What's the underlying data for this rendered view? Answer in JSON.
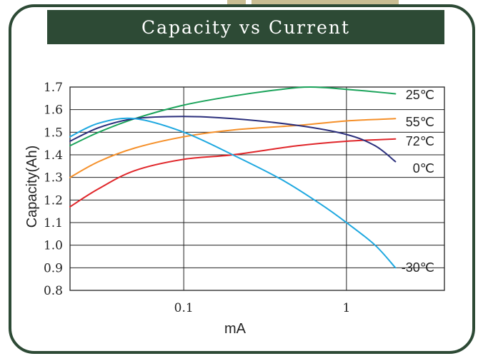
{
  "header": {
    "title": "Capacity vs Current"
  },
  "chart_data": {
    "type": "line",
    "title": "Capacity vs Current",
    "xlabel": "mA",
    "ylabel": "Capacity(Ah)",
    "x_scale": "log",
    "xlim": [
      0.02,
      4
    ],
    "ylim": [
      0.8,
      1.7
    ],
    "xticks": [
      "0.1",
      "1"
    ],
    "yticks": [
      "1.7",
      "1.6",
      "1.5",
      "1.4",
      "1.3",
      "1.2",
      "1.1",
      "1.0",
      "0.9",
      "0.8"
    ],
    "grid": true,
    "series": [
      {
        "name": "25℃",
        "color": "#1aa35a",
        "points": [
          [
            0.02,
            1.44
          ],
          [
            0.03,
            1.5
          ],
          [
            0.05,
            1.56
          ],
          [
            0.1,
            1.62
          ],
          [
            0.2,
            1.66
          ],
          [
            0.4,
            1.69
          ],
          [
            0.6,
            1.7
          ],
          [
            1,
            1.69
          ],
          [
            2,
            1.67
          ]
        ]
      },
      {
        "name": "55℃",
        "color": "#f5902a",
        "points": [
          [
            0.02,
            1.3
          ],
          [
            0.03,
            1.37
          ],
          [
            0.05,
            1.43
          ],
          [
            0.1,
            1.48
          ],
          [
            0.2,
            1.51
          ],
          [
            0.5,
            1.53
          ],
          [
            1,
            1.55
          ],
          [
            2,
            1.56
          ]
        ]
      },
      {
        "name": "72℃",
        "color": "#e0262a",
        "points": [
          [
            0.02,
            1.17
          ],
          [
            0.03,
            1.25
          ],
          [
            0.05,
            1.33
          ],
          [
            0.1,
            1.38
          ],
          [
            0.2,
            1.4
          ],
          [
            0.5,
            1.44
          ],
          [
            1,
            1.46
          ],
          [
            2,
            1.47
          ]
        ]
      },
      {
        "name": "0℃",
        "color": "#2b2f7c",
        "points": [
          [
            0.02,
            1.46
          ],
          [
            0.03,
            1.52
          ],
          [
            0.05,
            1.56
          ],
          [
            0.1,
            1.57
          ],
          [
            0.2,
            1.56
          ],
          [
            0.5,
            1.53
          ],
          [
            1,
            1.49
          ],
          [
            1.5,
            1.44
          ],
          [
            2,
            1.37
          ]
        ]
      },
      {
        "name": "-30℃",
        "color": "#1ea8e0",
        "points": [
          [
            0.02,
            1.48
          ],
          [
            0.03,
            1.54
          ],
          [
            0.05,
            1.56
          ],
          [
            0.1,
            1.5
          ],
          [
            0.2,
            1.4
          ],
          [
            0.4,
            1.29
          ],
          [
            0.7,
            1.18
          ],
          [
            1,
            1.1
          ],
          [
            1.5,
            1.0
          ],
          [
            2,
            0.9
          ]
        ]
      }
    ]
  }
}
